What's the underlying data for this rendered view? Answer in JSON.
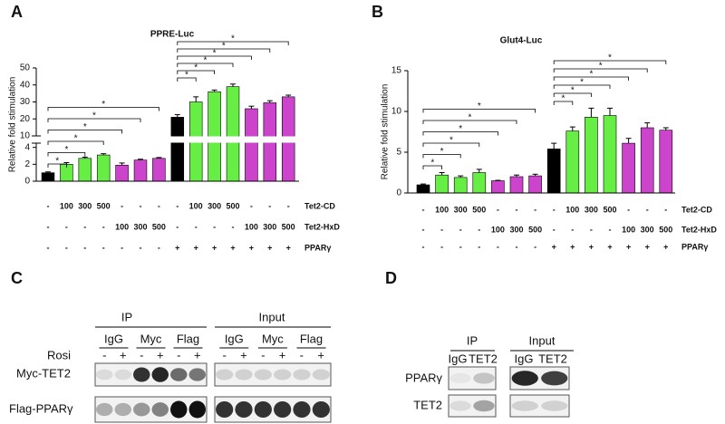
{
  "panel_labels": [
    "A",
    "B",
    "C",
    "D"
  ],
  "chart_data": [
    {
      "type": "bar",
      "title": "PPRE-Luc",
      "ylabel": "Relative fold stimulation",
      "values": [
        1,
        2,
        2.7,
        3.1,
        1.9,
        2.5,
        2.7,
        21,
        30,
        36,
        39,
        26,
        29.5,
        33
      ],
      "errors": [
        0.1,
        0.2,
        0.15,
        0.15,
        0.25,
        0.1,
        0.1,
        1.5,
        3,
        1,
        1.5,
        1.5,
        1.2,
        1
      ],
      "colors": [
        "#000000",
        "#66ee44",
        "#66ee44",
        "#66ee44",
        "#cc44cc",
        "#cc44cc",
        "#cc44cc",
        "#000000",
        "#66ee44",
        "#66ee44",
        "#66ee44",
        "#cc44cc",
        "#cc44cc",
        "#cc44cc"
      ],
      "ylim": [
        0,
        50
      ],
      "ybreak": [
        4.5,
        10
      ],
      "yticks": [
        0,
        2,
        4,
        10,
        20,
        30,
        40,
        50
      ],
      "conditions": [
        {
          "name": "Tet2-CD",
          "values": [
            "-",
            "100",
            "300",
            "500",
            "-",
            "-",
            "-",
            "-",
            "100",
            "300",
            "500",
            "-",
            "-",
            "-"
          ]
        },
        {
          "name": "Tet2-HxD",
          "values": [
            "-",
            "-",
            "-",
            "-",
            "100",
            "300",
            "500",
            "-",
            "-",
            "-",
            "-",
            "100",
            "300",
            "500"
          ]
        },
        {
          "name": "PPARγ",
          "values": [
            "-",
            "-",
            "-",
            "-",
            "-",
            "-",
            "-",
            "+",
            "+",
            "+",
            "+",
            "+",
            "+",
            "+"
          ]
        }
      ],
      "annotations": [
        {
          "text": "*",
          "from": 0,
          "to": 1
        },
        {
          "text": "*",
          "from": 0,
          "to": 2
        },
        {
          "text": "*",
          "from": 0,
          "to": 3
        },
        {
          "text": "*",
          "from": 0,
          "to": 4
        },
        {
          "text": "*",
          "from": 0,
          "to": 5
        },
        {
          "text": "*",
          "from": 0,
          "to": 6
        },
        {
          "text": "*",
          "from": 7,
          "to": 8
        },
        {
          "text": "*",
          "from": 7,
          "to": 9
        },
        {
          "text": "*",
          "from": 7,
          "to": 10
        },
        {
          "text": "*",
          "from": 7,
          "to": 11
        },
        {
          "text": "*",
          "from": 7,
          "to": 12
        },
        {
          "text": "*",
          "from": 7,
          "to": 13
        }
      ]
    },
    {
      "type": "bar",
      "title": "Glut4-Luc",
      "ylabel": "Relative fold stimulation",
      "values": [
        1,
        2.2,
        1.9,
        2.5,
        1.5,
        2,
        2.1,
        5.4,
        7.6,
        9.3,
        9.5,
        6.1,
        8,
        7.7
      ],
      "errors": [
        0.1,
        0.3,
        0.2,
        0.4,
        0.05,
        0.2,
        0.2,
        0.7,
        0.5,
        1.1,
        0.9,
        0.6,
        0.6,
        0.3
      ],
      "colors": [
        "#000000",
        "#66ee44",
        "#66ee44",
        "#66ee44",
        "#cc44cc",
        "#cc44cc",
        "#cc44cc",
        "#000000",
        "#66ee44",
        "#66ee44",
        "#66ee44",
        "#cc44cc",
        "#cc44cc",
        "#cc44cc"
      ],
      "ylim": [
        0,
        15
      ],
      "yticks": [
        0,
        5,
        10,
        15
      ],
      "conditions": [
        {
          "name": "Tet2-CD",
          "values": [
            "-",
            "100",
            "300",
            "500",
            "-",
            "-",
            "-",
            "-",
            "100",
            "300",
            "500",
            "-",
            "-",
            "-"
          ]
        },
        {
          "name": "Tet2-HxD",
          "values": [
            "-",
            "-",
            "-",
            "-",
            "100",
            "300",
            "500",
            "-",
            "-",
            "-",
            "-",
            "100",
            "300",
            "500"
          ]
        },
        {
          "name": "PPARγ",
          "values": [
            "-",
            "-",
            "-",
            "-",
            "-",
            "-",
            "-",
            "+",
            "+",
            "+",
            "+",
            "+",
            "+",
            "+"
          ]
        }
      ],
      "annotations": [
        {
          "text": "*",
          "from": 0,
          "to": 1
        },
        {
          "text": "*",
          "from": 0,
          "to": 2
        },
        {
          "text": "*",
          "from": 0,
          "to": 3
        },
        {
          "text": "*",
          "from": 0,
          "to": 4
        },
        {
          "text": "*",
          "from": 0,
          "to": 5
        },
        {
          "text": "*",
          "from": 0,
          "to": 6
        },
        {
          "text": "*",
          "from": 7,
          "to": 8
        },
        {
          "text": "*",
          "from": 7,
          "to": 9
        },
        {
          "text": "*",
          "from": 7,
          "to": 10
        },
        {
          "text": "*",
          "from": 7,
          "to": 11
        },
        {
          "text": "*",
          "from": 7,
          "to": 12
        },
        {
          "text": "*",
          "from": 7,
          "to": 13
        }
      ]
    }
  ],
  "blot_c": {
    "ip": "IP",
    "input": "Input",
    "antibodies": [
      "IgG",
      "Myc",
      "Flag",
      "IgG",
      "Myc",
      "Flag"
    ],
    "treatment": "Rosi",
    "treatment_states": [
      "-",
      "+",
      "-",
      "+",
      "-",
      "+",
      "-",
      "+",
      "-",
      "+",
      "-",
      "+"
    ],
    "rows": [
      "Myc-TET2",
      "Flag-PPARγ"
    ]
  },
  "blot_d": {
    "ip": "IP",
    "input": "Input",
    "antibodies": [
      "IgG",
      "TET2",
      "IgG",
      "TET2"
    ],
    "rows": [
      "PPARγ",
      "TET2"
    ]
  }
}
